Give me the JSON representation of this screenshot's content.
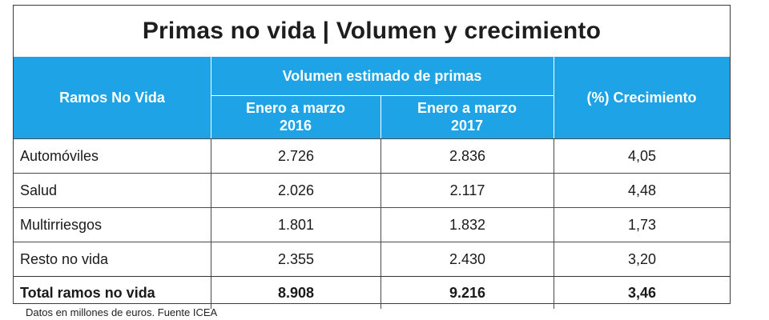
{
  "title": "Primas no vida | Volumen y crecimiento",
  "header": {
    "col_branch": "Ramos No Vida",
    "group_volume": "Volumen estimado de primas",
    "col_2016_line1": "Enero a marzo",
    "col_2016_line2": "2016",
    "col_2017_line1": "Enero a marzo",
    "col_2017_line2": "2017",
    "col_growth": "(%) Crecimiento"
  },
  "colors": {
    "header_bg": "#1ea3e6",
    "header_text": "#ffffff",
    "border": "#3b3b3b"
  },
  "chart_data": {
    "type": "table",
    "title": "Primas no vida | Volumen y crecimiento",
    "columns": [
      "Ramos No Vida",
      "Enero a marzo 2016",
      "Enero a marzo 2017",
      "(%) Crecimiento"
    ],
    "column_group": "Volumen estimado de primas",
    "rows": [
      [
        "Automóviles",
        "2.726",
        "2.836",
        "4,05"
      ],
      [
        "Salud",
        "2.026",
        "2.117",
        "4,48"
      ],
      [
        "Multirriesgos",
        "1.801",
        "1.832",
        "1,73"
      ],
      [
        "Resto no vida",
        "2.355",
        "2.430",
        "3,20"
      ],
      [
        "Total ramos no vida",
        "8.908",
        "9.216",
        "3,46"
      ]
    ]
  },
  "footnote": "Datos en millones de euros. Fuente ICEA"
}
